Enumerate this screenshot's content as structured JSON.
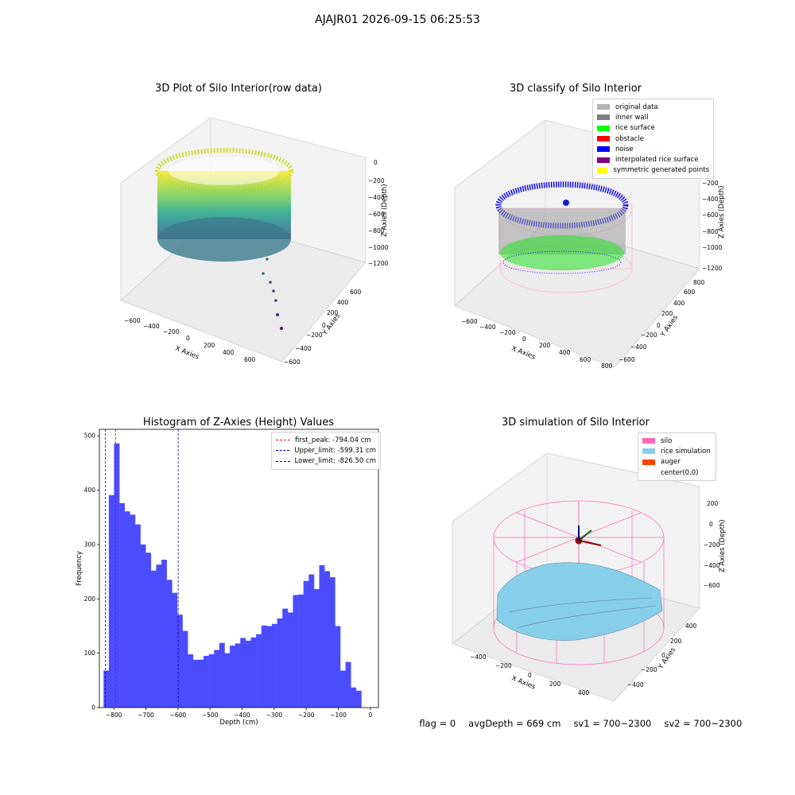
{
  "figure_title": "AJAJR01 2026-09-15 06:25:53",
  "status": {
    "flag": "flag = 0",
    "avg_depth": "avgDepth = 669 cm",
    "sv1": "sv1 = 700~2300",
    "sv2": "sv2 = 700~2300"
  },
  "chart_data": [
    {
      "type": "scatter",
      "subtype": "3d-scatter",
      "title": "3D Plot of Silo Interior(row data)",
      "xlabel": "X Axies",
      "ylabel": "Y Axies",
      "zlabel": "Z Axies (Depth)",
      "x_ticks": [
        "−600",
        "−400",
        "−200",
        "0",
        "200",
        "400",
        "600"
      ],
      "y_ticks": [
        "−600",
        "−400",
        "−200",
        "0",
        "200",
        "400",
        "600"
      ],
      "z_ticks": [
        "0",
        "−200",
        "−400",
        "−600",
        "−800",
        "−1000",
        "−1200"
      ],
      "colormap": "viridis"
    },
    {
      "type": "scatter",
      "subtype": "3d-scatter",
      "title": "3D classify of Silo Interior",
      "xlabel": "X Axies",
      "ylabel": "Y Axies",
      "zlabel": "Z Axies (Depth)",
      "x_ticks": [
        "−600",
        "−400",
        "−200",
        "0",
        "200",
        "400",
        "600",
        "800"
      ],
      "y_ticks": [
        "−600",
        "−400",
        "−200",
        "0",
        "200",
        "400",
        "600",
        "800"
      ],
      "z_ticks": [
        "0",
        "−200",
        "−400",
        "−600",
        "−800",
        "−1000",
        "−1200"
      ],
      "legend": [
        {
          "label": "original data",
          "color": "#b3b3b3"
        },
        {
          "label": "inner wall",
          "color": "#808080"
        },
        {
          "label": "rice surface",
          "color": "#00ff00"
        },
        {
          "label": "obstacle",
          "color": "#ff0000"
        },
        {
          "label": "noise",
          "color": "#0000ff"
        },
        {
          "label": "interpolated rice surface",
          "color": "#800080"
        },
        {
          "label": "symmetric generated points",
          "color": "#ffff00"
        }
      ],
      "legend_position": "top-right"
    },
    {
      "type": "bar",
      "subtype": "histogram",
      "title": "Histogram of Z-Axies (Height) Values",
      "xlabel": "Depth (cm)",
      "ylabel": "Frequency",
      "xlim": [
        -845,
        25
      ],
      "ylim": [
        0,
        512
      ],
      "x_ticks": [
        -800,
        -700,
        -600,
        -500,
        -400,
        -300,
        -200,
        -100,
        0
      ],
      "x_tick_labels": [
        "−800",
        "−700",
        "−600",
        "−500",
        "−400",
        "−300",
        "−200",
        "−100",
        "0"
      ],
      "y_ticks": [
        0,
        100,
        200,
        300,
        400,
        500
      ],
      "y_tick_labels": [
        "0",
        "100",
        "200",
        "300",
        "400",
        "500"
      ],
      "bin_start": -832,
      "bin_width": 16.4,
      "counts": [
        68,
        391,
        486,
        376,
        361,
        355,
        337,
        300,
        285,
        252,
        263,
        272,
        235,
        211,
        171,
        141,
        98,
        88,
        88,
        95,
        98,
        106,
        119,
        100,
        114,
        118,
        128,
        123,
        129,
        135,
        151,
        150,
        154,
        164,
        182,
        175,
        207,
        208,
        233,
        245,
        218,
        262,
        251,
        240,
        150,
        68,
        84,
        37,
        31
      ],
      "bar_color": "#4c4cff",
      "vlines": [
        {
          "label": "first_peak: -794.04 cm",
          "x": -794.04,
          "color": "#ff0000"
        },
        {
          "label": "Upper_limit: -599.31 cm",
          "x": -599.31,
          "color": "#0000aa"
        },
        {
          "label": "Lower_limit: -826.50 cm",
          "x": -826.5,
          "color": "#0000aa"
        }
      ],
      "legend_position": "top-right",
      "grid": false
    },
    {
      "type": "area",
      "subtype": "3d-surface",
      "title": "3D simulation of Silo Interior",
      "xlabel": "X Axies",
      "ylabel": "Y Axies",
      "zlabel": "Z Axies (Depth)",
      "x_ticks": [
        "−400",
        "−200",
        "0",
        "200",
        "400"
      ],
      "y_ticks": [
        "−400",
        "−200",
        "0",
        "200",
        "400"
      ],
      "z_ticks": [
        "200",
        "0",
        "−200",
        "−400",
        "−600"
      ],
      "legend": [
        {
          "label": "silo",
          "color": "#ff69b4"
        },
        {
          "label": "rice simulation",
          "color": "#87ceeb"
        },
        {
          "label": "auger",
          "color": "#ff4500"
        },
        {
          "label": "center(0,0)",
          "color": ""
        }
      ],
      "legend_position": "top-right"
    }
  ]
}
